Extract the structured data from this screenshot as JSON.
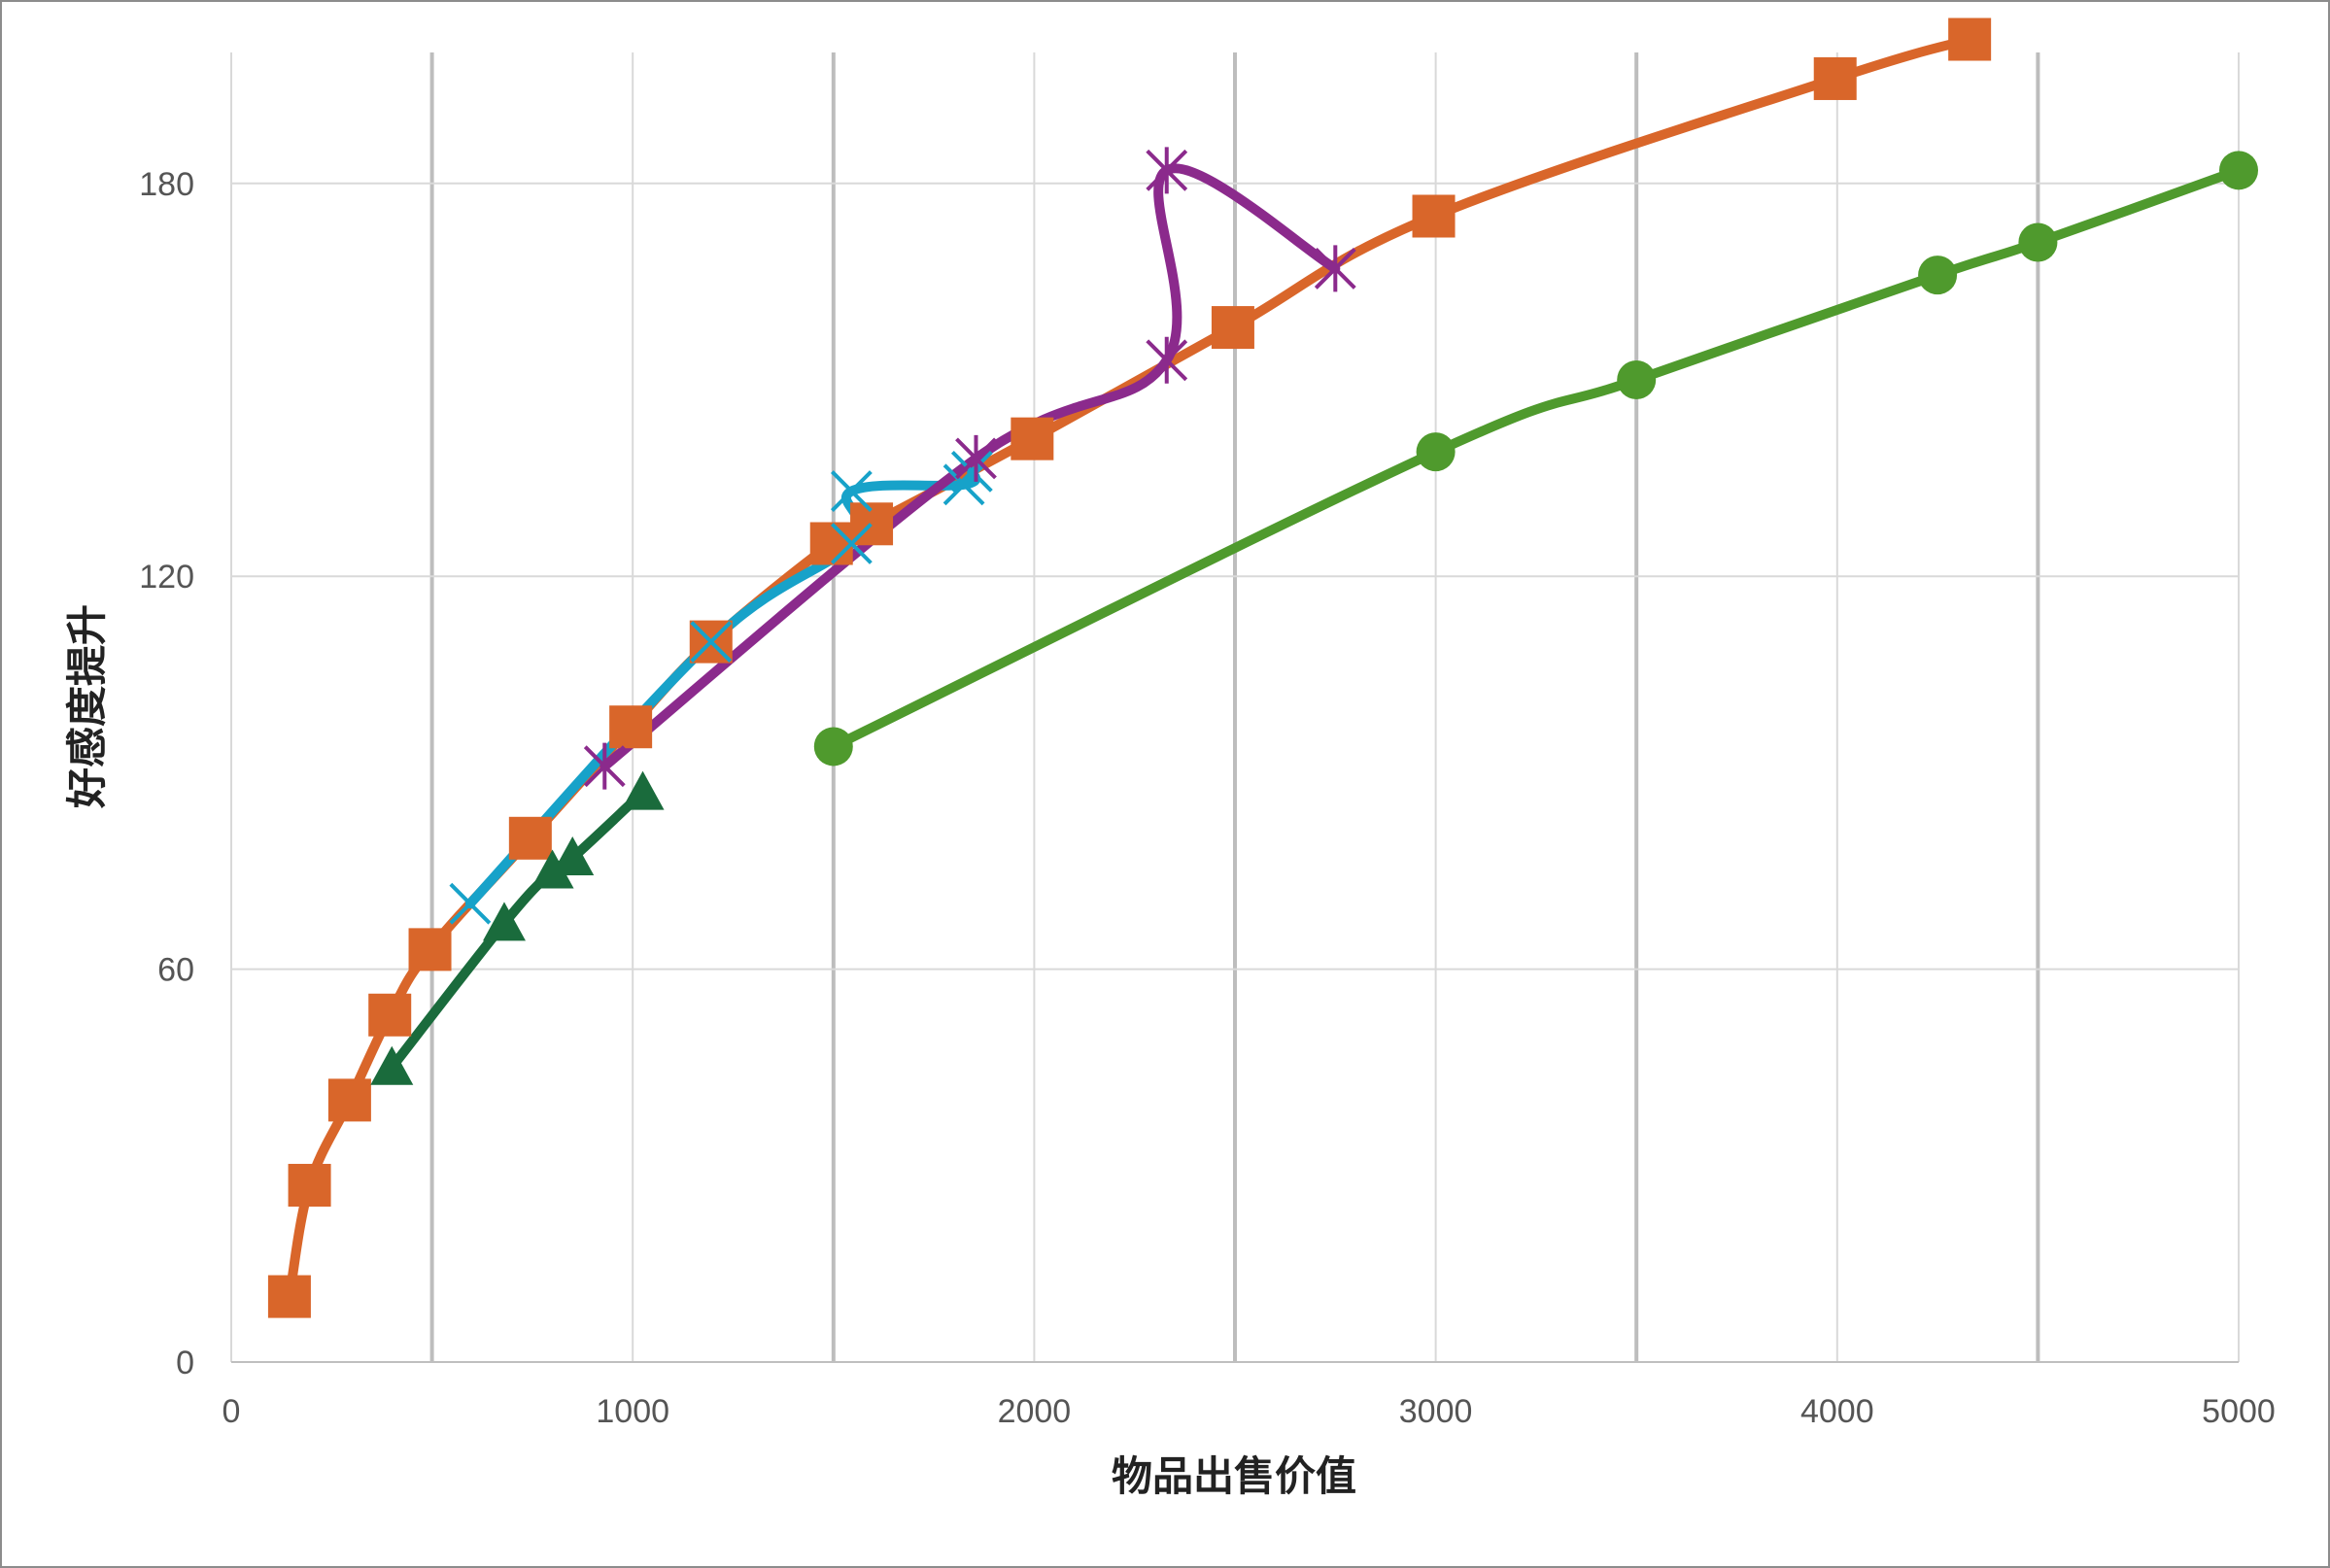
{
  "chart_data": {
    "type": "line",
    "title": "",
    "xlabel": "物品出售价值",
    "ylabel": "好感度提升",
    "xlim": [
      0,
      5000
    ],
    "ylim": [
      0,
      200
    ],
    "x_ticks": [
      0,
      1000,
      2000,
      3000,
      4000,
      5000
    ],
    "y_ticks": [
      0,
      60,
      120,
      180
    ],
    "x_tick_labels": [
      "0",
      "1000",
      "2000",
      "3000",
      "4000",
      "5000"
    ],
    "y_tick_labels": [
      "0",
      "60",
      "120",
      "180"
    ],
    "grid": true,
    "legend": "none",
    "series": [
      {
        "color": "#d9662a",
        "marker": "square",
        "x": [
          145,
          195,
          295,
          395,
          495,
          745,
          995,
          1195,
          1495,
          1595,
          1995,
          2495,
          2995,
          3995,
          4330
        ],
        "y": [
          10,
          27,
          40,
          53,
          63,
          80,
          97,
          110,
          125,
          128,
          141,
          158,
          175,
          196,
          202
        ]
      },
      {
        "color": "#17a2c9",
        "marker": "x",
        "x": [
          595,
          1195,
          1545,
          1545,
          1825,
          1845
        ],
        "y": [
          70,
          110,
          125,
          133,
          134,
          136
        ]
      },
      {
        "color": "#8b2a8c",
        "marker": "star",
        "x": [
          930,
          1855,
          2330,
          2330,
          2750
        ],
        "y": [
          91,
          138,
          153,
          182,
          167
        ]
      },
      {
        "color": "#1a6b3c",
        "marker": "triangle",
        "x": [
          400,
          680,
          800,
          850,
          1025
        ],
        "y": [
          45,
          67,
          75,
          77,
          87
        ]
      },
      {
        "color": "#4f9a2d",
        "marker": "circle",
        "x": [
          1500,
          3000,
          3500,
          4250,
          4500,
          5000
        ],
        "y": [
          94,
          139,
          150,
          166,
          171,
          182
        ]
      }
    ]
  }
}
